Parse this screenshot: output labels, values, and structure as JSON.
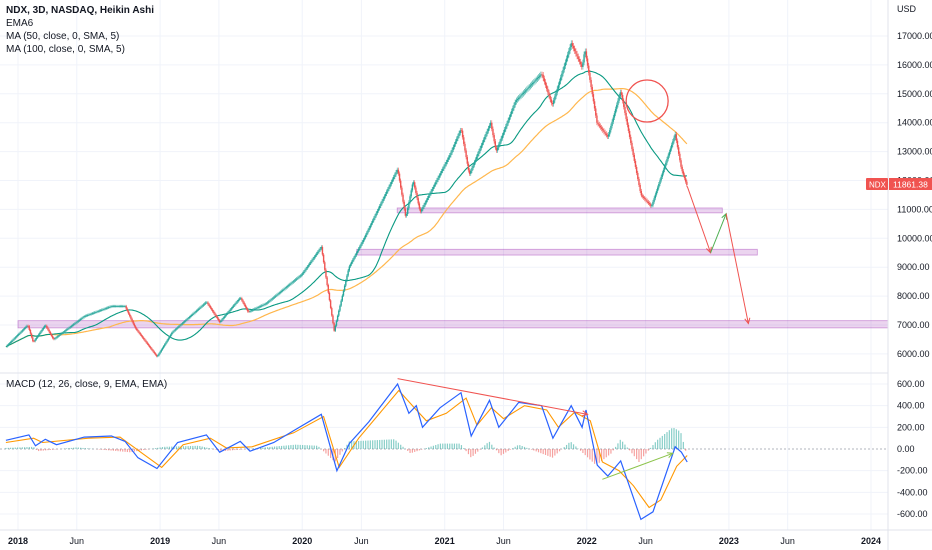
{
  "header": {
    "title": "NDX, 3D, NASDAQ, Heikin Ashi",
    "indicators": [
      "EMA6",
      "MA (50, close, 0, SMA, 5)",
      "MA (100, close, 0, SMA, 5)"
    ]
  },
  "macd_label": "MACD (12, 26, close, 9, EMA, EMA)",
  "price_tag": {
    "symbol": "NDX",
    "value": "11861.38",
    "color": "#f05350"
  },
  "currency": "USD",
  "chart_data": [
    {
      "type": "candlestick",
      "title": "NDX, 3D, NASDAQ, Heikin Ashi",
      "ylabel": "USD",
      "ylim": [
        5500,
        18000
      ],
      "y_ticks": [
        "17000.00",
        "16000.00",
        "15000.00",
        "14000.00",
        "13000.00",
        "12000.00",
        "11000.00",
        "10000.00",
        "9000.00",
        "8000.00",
        "7000.00",
        "6000.00"
      ],
      "y_tick_values": [
        17000,
        16000,
        15000,
        14000,
        13000,
        12000,
        11000,
        10000,
        9000,
        8000,
        7000,
        6000
      ],
      "x_ticks": [
        "2018",
        "Jun",
        "2019",
        "Jun",
        "2020",
        "Jun",
        "2021",
        "Jun",
        "2022",
        "Jun",
        "2023",
        "Jun",
        "2024"
      ],
      "x_tick_dates": [
        "2018-01-01",
        "2018-06-01",
        "2019-01-01",
        "2019-06-01",
        "2020-01-01",
        "2020-06-01",
        "2021-01-01",
        "2021-06-01",
        "2022-01-01",
        "2022-06-01",
        "2023-01-01",
        "2023-06-01",
        "2024-01-01"
      ],
      "price_path": [
        [
          "2017-12-01",
          6250
        ],
        [
          "2018-01-26",
          7000
        ],
        [
          "2018-02-09",
          6400
        ],
        [
          "2018-03-12",
          7000
        ],
        [
          "2018-04-02",
          6500
        ],
        [
          "2018-06-20",
          7300
        ],
        [
          "2018-08-29",
          7650
        ],
        [
          "2018-10-03",
          7650
        ],
        [
          "2018-10-29",
          6900
        ],
        [
          "2018-12-24",
          5900
        ],
        [
          "2019-02-01",
          6750
        ],
        [
          "2019-04-30",
          7800
        ],
        [
          "2019-06-03",
          7100
        ],
        [
          "2019-07-26",
          7950
        ],
        [
          "2019-08-15",
          7450
        ],
        [
          "2019-10-01",
          7750
        ],
        [
          "2019-12-31",
          8750
        ],
        [
          "2020-02-19",
          9700
        ],
        [
          "2020-03-23",
          6800
        ],
        [
          "2020-04-30",
          9000
        ],
        [
          "2020-06-08",
          10000
        ],
        [
          "2020-09-02",
          12400
        ],
        [
          "2020-09-23",
          10700
        ],
        [
          "2020-10-12",
          12000
        ],
        [
          "2020-10-30",
          10900
        ],
        [
          "2021-01-15",
          12900
        ],
        [
          "2021-02-12",
          13800
        ],
        [
          "2021-03-05",
          12200
        ],
        [
          "2021-04-29",
          14000
        ],
        [
          "2021-05-13",
          13000
        ],
        [
          "2021-07-02",
          14750
        ],
        [
          "2021-09-07",
          15700
        ],
        [
          "2021-10-04",
          14600
        ],
        [
          "2021-11-22",
          16750
        ],
        [
          "2021-12-20",
          15900
        ],
        [
          "2021-12-27",
          16550
        ],
        [
          "2022-01-27",
          14000
        ],
        [
          "2022-02-24",
          13500
        ],
        [
          "2022-03-29",
          15100
        ],
        [
          "2022-05-20",
          11500
        ],
        [
          "2022-06-16",
          11100
        ],
        [
          "2022-08-16",
          13600
        ],
        [
          "2022-09-01",
          12400
        ],
        [
          "2022-09-16",
          11800
        ]
      ],
      "series": [
        {
          "name": "EMA6",
          "color": "#26a69a"
        },
        {
          "name": "MA (50, close, 0, SMA, 5)",
          "color": "#089981"
        },
        {
          "name": "MA (100, close, 0, SMA, 5)",
          "color": "#ffb74d"
        }
      ],
      "support_zones": [
        {
          "from": "2018-01-01",
          "to": "2024-06-30",
          "low": 6900,
          "high": 7150
        },
        {
          "from": "2020-05-20",
          "to": "2023-03-15",
          "low": 9420,
          "high": 9620
        },
        {
          "from": "2020-09-01",
          "to": "2022-12-15",
          "low": 10880,
          "high": 11050
        }
      ],
      "projection": [
        {
          "from": [
            "2022-09-16",
            11800
          ],
          "to": [
            "2022-11-15",
            9500
          ],
          "color": "#f05350"
        },
        {
          "from": [
            "2022-11-15",
            9500
          ],
          "to": [
            "2022-12-25",
            10850
          ],
          "color": "#4caf50"
        },
        {
          "from": [
            "2022-12-25",
            10850
          ],
          "to": [
            "2023-02-20",
            7050
          ],
          "color": "#f05350"
        }
      ],
      "circle_annotation": {
        "date": "2022-06-05",
        "value": 14750,
        "color": "#f05350"
      }
    },
    {
      "type": "macd",
      "title": "MACD (12, 26, close, 9, EMA, EMA)",
      "ylim": [
        -720,
        720
      ],
      "y_ticks": [
        "600.00",
        "400.00",
        "200.00",
        "0.00",
        "-200.00",
        "-400.00",
        "-600.00"
      ],
      "y_tick_values": [
        600,
        400,
        200,
        0,
        -200,
        -400,
        -600
      ],
      "macd_path": [
        [
          "2017-12-01",
          80
        ],
        [
          "2018-01-29",
          130
        ],
        [
          "2018-02-15",
          30
        ],
        [
          "2018-03-12",
          90
        ],
        [
          "2018-04-10",
          40
        ],
        [
          "2018-06-20",
          110
        ],
        [
          "2018-08-29",
          120
        ],
        [
          "2018-10-03",
          70
        ],
        [
          "2018-11-05",
          -80
        ],
        [
          "2018-12-24",
          -180
        ],
        [
          "2019-02-15",
          60
        ],
        [
          "2019-04-30",
          130
        ],
        [
          "2019-06-03",
          -30
        ],
        [
          "2019-07-26",
          70
        ],
        [
          "2019-08-20",
          -20
        ],
        [
          "2019-10-20",
          60
        ],
        [
          "2019-12-15",
          180
        ],
        [
          "2020-02-19",
          320
        ],
        [
          "2020-03-30",
          -200
        ],
        [
          "2020-05-01",
          50
        ],
        [
          "2020-06-20",
          250
        ],
        [
          "2020-09-02",
          600
        ],
        [
          "2020-10-01",
          330
        ],
        [
          "2020-10-20",
          400
        ],
        [
          "2020-11-05",
          200
        ],
        [
          "2020-12-20",
          380
        ],
        [
          "2021-02-12",
          520
        ],
        [
          "2021-03-10",
          120
        ],
        [
          "2021-04-26",
          450
        ],
        [
          "2021-05-20",
          200
        ],
        [
          "2021-07-10",
          430
        ],
        [
          "2021-09-07",
          400
        ],
        [
          "2021-10-06",
          100
        ],
        [
          "2021-11-22",
          400
        ],
        [
          "2021-12-20",
          200
        ],
        [
          "2021-12-30",
          360
        ],
        [
          "2022-01-28",
          -150
        ],
        [
          "2022-02-24",
          -250
        ],
        [
          "2022-03-29",
          -110
        ],
        [
          "2022-05-20",
          -650
        ],
        [
          "2022-06-20",
          -580
        ],
        [
          "2022-08-16",
          20
        ],
        [
          "2022-09-01",
          -30
        ],
        [
          "2022-09-16",
          -120
        ]
      ],
      "signal_path": [
        [
          "2017-12-01",
          60
        ],
        [
          "2018-02-10",
          100
        ],
        [
          "2018-03-05",
          60
        ],
        [
          "2018-07-01",
          100
        ],
        [
          "2018-09-20",
          110
        ],
        [
          "2018-11-20",
          -50
        ],
        [
          "2019-01-05",
          -170
        ],
        [
          "2019-03-01",
          40
        ],
        [
          "2019-05-10",
          100
        ],
        [
          "2019-06-20",
          10
        ],
        [
          "2019-08-25",
          20
        ],
        [
          "2019-12-10",
          150
        ],
        [
          "2020-02-25",
          300
        ],
        [
          "2020-04-05",
          -170
        ],
        [
          "2020-05-25",
          100
        ],
        [
          "2020-09-05",
          540
        ],
        [
          "2020-10-15",
          380
        ],
        [
          "2020-11-15",
          260
        ],
        [
          "2021-01-05",
          330
        ],
        [
          "2021-02-25",
          470
        ],
        [
          "2021-03-25",
          220
        ],
        [
          "2021-05-01",
          380
        ],
        [
          "2021-06-01",
          280
        ],
        [
          "2021-07-25",
          400
        ],
        [
          "2021-09-20",
          360
        ],
        [
          "2021-10-20",
          200
        ],
        [
          "2021-12-01",
          340
        ],
        [
          "2022-01-10",
          260
        ],
        [
          "2022-02-10",
          -120
        ],
        [
          "2022-03-25",
          -200
        ],
        [
          "2022-05-01",
          -340
        ],
        [
          "2022-06-10",
          -540
        ],
        [
          "2022-07-10",
          -470
        ],
        [
          "2022-08-20",
          -160
        ],
        [
          "2022-09-16",
          -60
        ]
      ],
      "histogram_path": [
        [
          "2017-12-01",
          10
        ],
        [
          "2018-02-10",
          20
        ],
        [
          "2018-02-20",
          -20
        ],
        [
          "2018-06-01",
          15
        ],
        [
          "2018-10-15",
          -30
        ],
        [
          "2019-01-10",
          20
        ],
        [
          "2019-04-10",
          30
        ],
        [
          "2019-06-10",
          -20
        ],
        [
          "2019-12-15",
          40
        ],
        [
          "2020-02-10",
          30
        ],
        [
          "2020-03-25",
          -120
        ],
        [
          "2020-05-01",
          70
        ],
        [
          "2020-08-25",
          90
        ],
        [
          "2020-10-05",
          -40
        ],
        [
          "2020-12-20",
          50
        ],
        [
          "2021-02-10",
          50
        ],
        [
          "2021-03-10",
          -80
        ],
        [
          "2021-04-25",
          70
        ],
        [
          "2021-05-25",
          -60
        ],
        [
          "2021-07-10",
          40
        ],
        [
          "2021-10-05",
          -80
        ],
        [
          "2021-11-20",
          70
        ],
        [
          "2022-01-25",
          -150
        ],
        [
          "2022-03-05",
          -40
        ],
        [
          "2022-03-29",
          90
        ],
        [
          "2022-05-15",
          -120
        ],
        [
          "2022-06-30",
          80
        ],
        [
          "2022-08-10",
          200
        ],
        [
          "2022-08-30",
          160
        ],
        [
          "2022-09-16",
          -70
        ]
      ],
      "trendlines": [
        {
          "from": [
            "2020-09-02",
            650
          ],
          "to": [
            "2022-01-03",
            320
          ],
          "color": "#f05350"
        },
        {
          "from": [
            "2022-02-10",
            -280
          ],
          "to": [
            "2022-08-10",
            -40
          ],
          "color": "#8bc34a"
        }
      ]
    }
  ]
}
